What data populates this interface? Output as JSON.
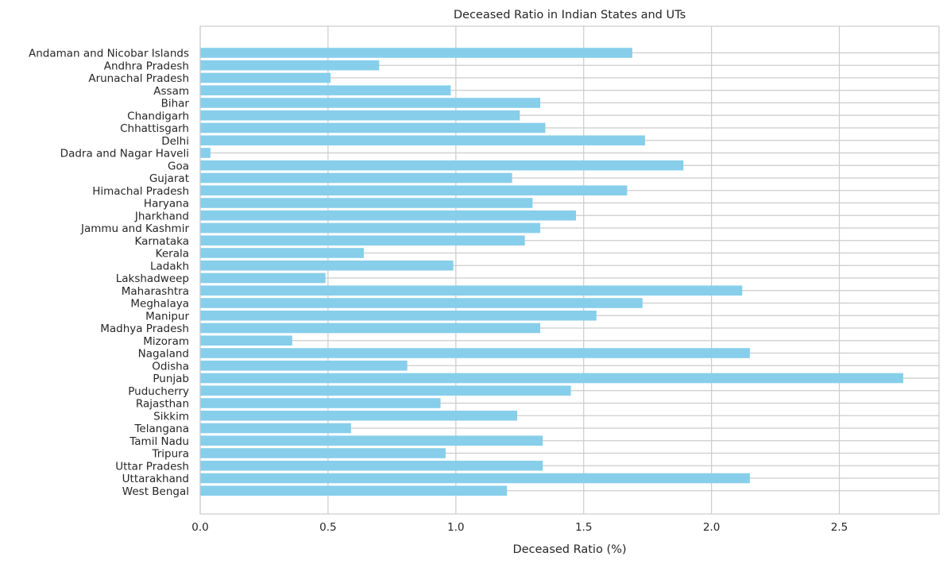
{
  "chart_data": {
    "type": "bar",
    "orientation": "horizontal",
    "title": "Deceased Ratio in Indian States and UTs",
    "xlabel": "Deceased Ratio (%)",
    "ylabel": "",
    "xlim": [
      0,
      2.89
    ],
    "xticks": [
      "0.0",
      "0.5",
      "1.0",
      "1.5",
      "2.0",
      "2.5"
    ],
    "grid": true,
    "bar_color": "#87CEEB",
    "categories": [
      "Andaman and Nicobar Islands",
      "Andhra Pradesh",
      "Arunachal Pradesh",
      "Assam",
      "Bihar",
      "Chandigarh",
      "Chhattisgarh",
      "Delhi",
      "Dadra and Nagar Haveli",
      "Goa",
      "Gujarat",
      "Himachal Pradesh",
      "Haryana",
      "Jharkhand",
      "Jammu and Kashmir",
      "Karnataka",
      "Kerala",
      "Ladakh",
      "Lakshadweep",
      "Maharashtra",
      "Meghalaya",
      "Manipur",
      "Madhya Pradesh",
      "Mizoram",
      "Nagaland",
      "Odisha",
      "Punjab",
      "Puducherry",
      "Rajasthan",
      "Sikkim",
      "Telangana",
      "Tamil Nadu",
      "Tripura",
      "Uttar Pradesh",
      "Uttarakhand",
      "West Bengal"
    ],
    "values": [
      1.69,
      0.7,
      0.51,
      0.98,
      1.33,
      1.25,
      1.35,
      1.74,
      0.04,
      1.89,
      1.22,
      1.67,
      1.3,
      1.47,
      1.33,
      1.27,
      0.64,
      0.99,
      0.49,
      2.12,
      1.73,
      1.55,
      1.33,
      0.36,
      2.15,
      0.81,
      2.75,
      1.45,
      0.94,
      1.24,
      0.59,
      1.34,
      0.96,
      1.34,
      2.15,
      1.2
    ]
  }
}
